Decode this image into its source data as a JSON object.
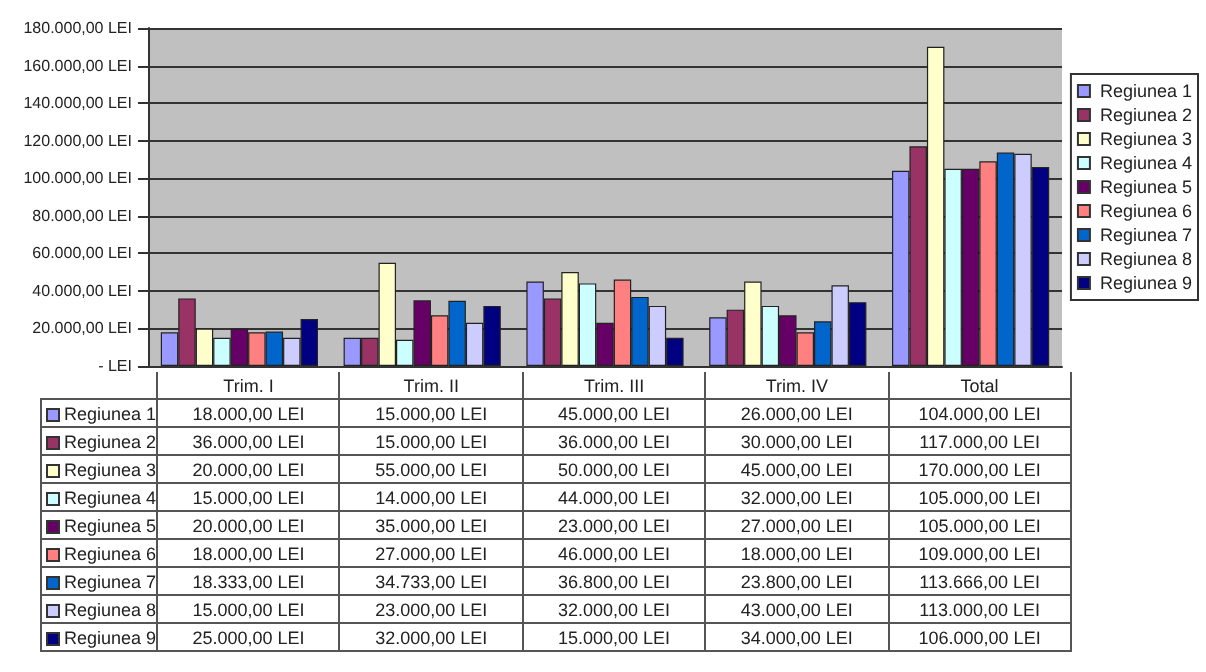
{
  "chart_data": {
    "type": "bar",
    "categories": [
      "Trim. I",
      "Trim. II",
      "Trim. III",
      "Trim. IV",
      "Total"
    ],
    "series": [
      {
        "name": "Regiunea 1",
        "color": "#9999ff",
        "values": [
          18000,
          15000,
          45000,
          26000,
          104000
        ],
        "value_labels": [
          "18.000,00 LEI",
          "15.000,00 LEI",
          "45.000,00 LEI",
          "26.000,00 LEI",
          "104.000,00 LEI"
        ]
      },
      {
        "name": "Regiunea 2",
        "color": "#993366",
        "values": [
          36000,
          15000,
          36000,
          30000,
          117000
        ],
        "value_labels": [
          "36.000,00 LEI",
          "15.000,00 LEI",
          "36.000,00 LEI",
          "30.000,00 LEI",
          "117.000,00 LEI"
        ]
      },
      {
        "name": "Regiunea 3",
        "color": "#ffffcc",
        "values": [
          20000,
          55000,
          50000,
          45000,
          170000
        ],
        "value_labels": [
          "20.000,00 LEI",
          "55.000,00 LEI",
          "50.000,00 LEI",
          "45.000,00 LEI",
          "170.000,00 LEI"
        ]
      },
      {
        "name": "Regiunea 4",
        "color": "#ccffff",
        "values": [
          15000,
          14000,
          44000,
          32000,
          105000
        ],
        "value_labels": [
          "15.000,00 LEI",
          "14.000,00 LEI",
          "44.000,00 LEI",
          "32.000,00 LEI",
          "105.000,00 LEI"
        ]
      },
      {
        "name": "Regiunea 5",
        "color": "#660066",
        "values": [
          20000,
          35000,
          23000,
          27000,
          105000
        ],
        "value_labels": [
          "20.000,00 LEI",
          "35.000,00 LEI",
          "23.000,00 LEI",
          "27.000,00 LEI",
          "105.000,00 LEI"
        ]
      },
      {
        "name": "Regiunea 6",
        "color": "#ff8080",
        "values": [
          18000,
          27000,
          46000,
          18000,
          109000
        ],
        "value_labels": [
          "18.000,00 LEI",
          "27.000,00 LEI",
          "46.000,00 LEI",
          "18.000,00 LEI",
          "109.000,00 LEI"
        ]
      },
      {
        "name": "Regiunea 7",
        "color": "#0066cc",
        "values": [
          18333,
          34733,
          36800,
          23800,
          113666
        ],
        "value_labels": [
          "18.333,00 LEI",
          "34.733,00 LEI",
          "36.800,00 LEI",
          "23.800,00 LEI",
          "113.666,00 LEI"
        ]
      },
      {
        "name": "Regiunea 8",
        "color": "#ccccff",
        "values": [
          15000,
          23000,
          32000,
          43000,
          113000
        ],
        "value_labels": [
          "15.000,00 LEI",
          "23.000,00 LEI",
          "32.000,00 LEI",
          "43.000,00 LEI",
          "113.000,00 LEI"
        ]
      },
      {
        "name": "Regiunea 9",
        "color": "#000080",
        "values": [
          25000,
          32000,
          15000,
          34000,
          106000
        ],
        "value_labels": [
          "25.000,00 LEI",
          "32.000,00 LEI",
          "15.000,00 LEI",
          "34.000,00 LEI",
          "106.000,00 LEI"
        ]
      }
    ],
    "ylim": [
      0,
      180000
    ],
    "yticks": [
      {
        "value": 0,
        "label": "- LEI"
      },
      {
        "value": 20000,
        "label": "20.000,00 LEI"
      },
      {
        "value": 40000,
        "label": "40.000,00 LEI"
      },
      {
        "value": 60000,
        "label": "60.000,00 LEI"
      },
      {
        "value": 80000,
        "label": "80.000,00 LEI"
      },
      {
        "value": 100000,
        "label": "100.000,00 LEI"
      },
      {
        "value": 120000,
        "label": "120.000,00 LEI"
      },
      {
        "value": 140000,
        "label": "140.000,00 LEI"
      },
      {
        "value": 160000,
        "label": "160.000,00 LEI"
      },
      {
        "value": 180000,
        "label": "180.000,00 LEI"
      }
    ],
    "grid": "y",
    "legend": "right"
  }
}
